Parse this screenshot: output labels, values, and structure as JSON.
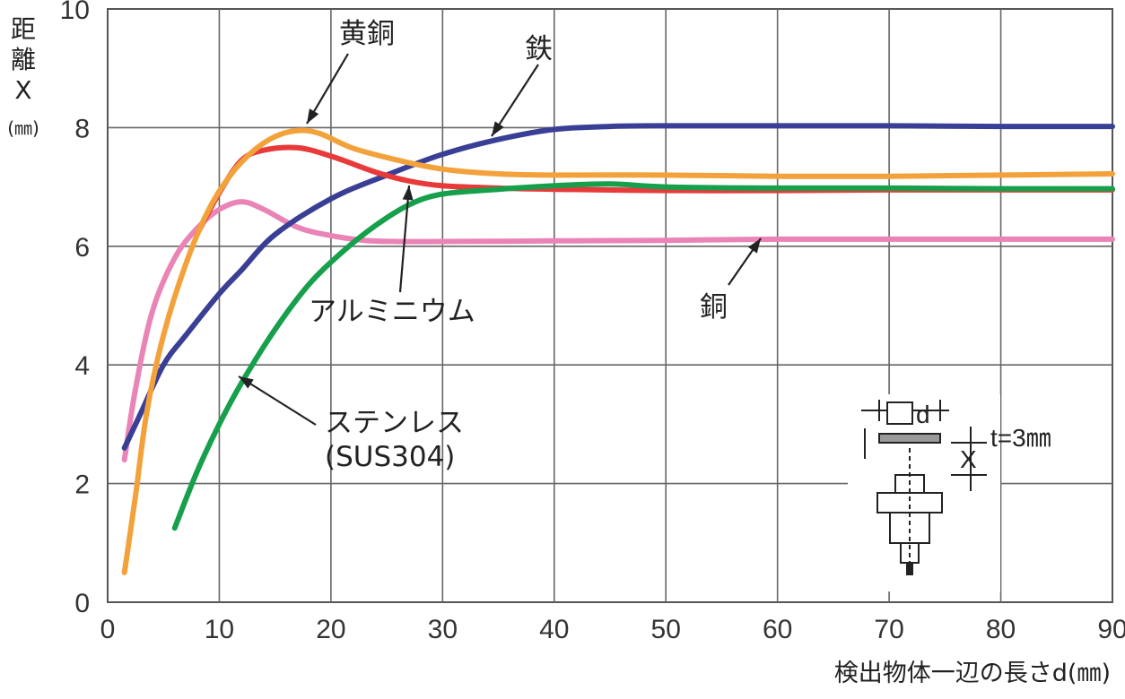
{
  "chart_data": {
    "type": "line",
    "title": "",
    "xlabel": "検出物体一辺の長さd(㎜)",
    "ylabel": "距離X(㎜)",
    "ylabel_parts": [
      "距",
      "離",
      "X",
      "(㎜)"
    ],
    "xlim": [
      0,
      90
    ],
    "ylim": [
      0,
      10
    ],
    "x_ticks": [
      0,
      10,
      20,
      30,
      40,
      50,
      60,
      70,
      80,
      90
    ],
    "y_ticks": [
      0,
      2,
      4,
      6,
      8,
      10
    ],
    "grid": true,
    "legend": "none (curves are labeled directly with arrows)",
    "series": [
      {
        "name": "鉄",
        "color": "#3a3f96",
        "points": [
          [
            1.5,
            2.6
          ],
          [
            3,
            3.2
          ],
          [
            5,
            4.0
          ],
          [
            7,
            4.5
          ],
          [
            10,
            5.2
          ],
          [
            12,
            5.6
          ],
          [
            15,
            6.2
          ],
          [
            20,
            6.8
          ],
          [
            25,
            7.2
          ],
          [
            30,
            7.55
          ],
          [
            35,
            7.8
          ],
          [
            40,
            7.97
          ],
          [
            45,
            8.02
          ],
          [
            50,
            8.03
          ],
          [
            60,
            8.03
          ],
          [
            70,
            8.03
          ],
          [
            80,
            8.02
          ],
          [
            90,
            8.02
          ]
        ]
      },
      {
        "name": "黄銅",
        "color": "#f3a23b",
        "points": [
          [
            1.5,
            0.5
          ],
          [
            2.5,
            1.8
          ],
          [
            3.5,
            3.2
          ],
          [
            5,
            4.5
          ],
          [
            7,
            5.7
          ],
          [
            9,
            6.6
          ],
          [
            11,
            7.2
          ],
          [
            13,
            7.6
          ],
          [
            15,
            7.85
          ],
          [
            17,
            7.95
          ],
          [
            19,
            7.9
          ],
          [
            22,
            7.65
          ],
          [
            26,
            7.45
          ],
          [
            30,
            7.3
          ],
          [
            35,
            7.22
          ],
          [
            40,
            7.2
          ],
          [
            50,
            7.2
          ],
          [
            60,
            7.18
          ],
          [
            70,
            7.18
          ],
          [
            80,
            7.2
          ],
          [
            90,
            7.22
          ]
        ]
      },
      {
        "name": "アルミニウム",
        "color": "#e83a3a",
        "points": [
          [
            8,
            6.2
          ],
          [
            10,
            6.9
          ],
          [
            12,
            7.45
          ],
          [
            14,
            7.62
          ],
          [
            17,
            7.66
          ],
          [
            20,
            7.52
          ],
          [
            24,
            7.25
          ],
          [
            27,
            7.1
          ],
          [
            30,
            7.02
          ],
          [
            35,
            6.98
          ],
          [
            40,
            6.96
          ],
          [
            50,
            6.94
          ],
          [
            60,
            6.94
          ],
          [
            70,
            6.95
          ],
          [
            80,
            6.95
          ],
          [
            90,
            6.95
          ]
        ]
      },
      {
        "name": "銅",
        "color": "#ea84b7",
        "points": [
          [
            1.5,
            2.4
          ],
          [
            2.5,
            3.6
          ],
          [
            4,
            4.9
          ],
          [
            6,
            5.8
          ],
          [
            8,
            6.3
          ],
          [
            10,
            6.62
          ],
          [
            12,
            6.75
          ],
          [
            14,
            6.62
          ],
          [
            17,
            6.32
          ],
          [
            20,
            6.18
          ],
          [
            23,
            6.1
          ],
          [
            26,
            6.08
          ],
          [
            30,
            6.08
          ],
          [
            40,
            6.09
          ],
          [
            50,
            6.1
          ],
          [
            60,
            6.12
          ],
          [
            70,
            6.12
          ],
          [
            80,
            6.12
          ],
          [
            90,
            6.12
          ]
        ]
      },
      {
        "name": "ステンレス(SUS304)",
        "color": "#17a04c",
        "points": [
          [
            6,
            1.25
          ],
          [
            8,
            2.2
          ],
          [
            10,
            3.0
          ],
          [
            12,
            3.7
          ],
          [
            15,
            4.6
          ],
          [
            18,
            5.35
          ],
          [
            21,
            5.9
          ],
          [
            24,
            6.35
          ],
          [
            27,
            6.7
          ],
          [
            30,
            6.88
          ],
          [
            35,
            6.96
          ],
          [
            40,
            7.02
          ],
          [
            45,
            7.05
          ],
          [
            50,
            7.0
          ],
          [
            60,
            6.98
          ],
          [
            70,
            6.98
          ],
          [
            80,
            6.97
          ],
          [
            90,
            6.97
          ]
        ]
      }
    ],
    "annotations": [
      {
        "text": "黄銅",
        "series": "黄銅"
      },
      {
        "text": "鉄",
        "series": "鉄"
      },
      {
        "text": "アルミニウム",
        "series": "アルミニウム"
      },
      {
        "text": "銅",
        "series": "銅"
      },
      {
        "text": "ステンレス",
        "series": "ステンレス(SUS304)"
      },
      {
        "text": "(SUS304)",
        "series": "ステンレス(SUS304)"
      }
    ],
    "inset": {
      "d_label": "d",
      "x_label": "X",
      "t_label": "t=3㎜"
    }
  }
}
